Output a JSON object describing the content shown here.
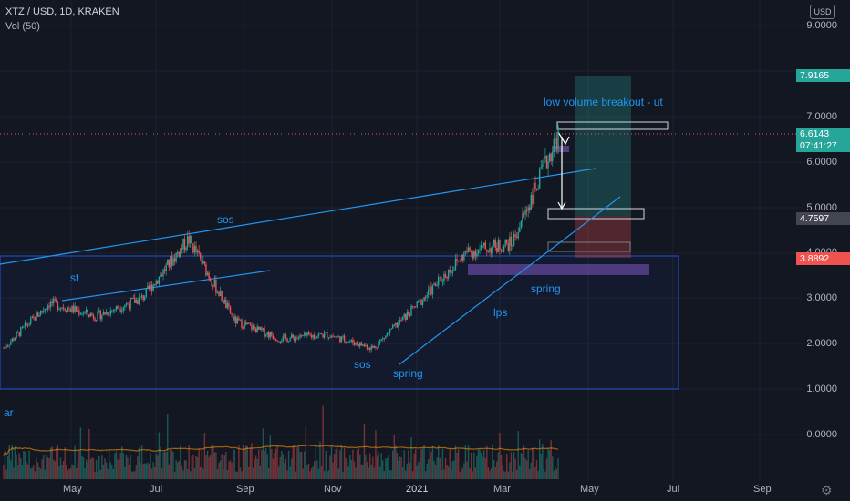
{
  "header": {
    "symbol": "XTZ / USD, 1D, KRAKEN",
    "indicator": "Vol (50)"
  },
  "axis": {
    "currency": "USD",
    "y_ticks": [
      "9.0000",
      "7.0000",
      "6.0000",
      "5.0000",
      "4.0000",
      "3.0000",
      "2.0000",
      "1.0000",
      "0.0000"
    ],
    "x_ticks": [
      "May",
      "Jul",
      "Sep",
      "Nov",
      "2021",
      "Mar",
      "May",
      "Jul",
      "Sep"
    ]
  },
  "badges": {
    "target": "7.9165",
    "last_price": "6.6143",
    "countdown": "07:41:27",
    "entry": "4.7597",
    "stop": "3.8892"
  },
  "colors": {
    "target": "#26a69a",
    "last": "#26a69a",
    "entry": "#434651",
    "stop": "#ef5350",
    "annotation": "#2196f3"
  },
  "annotations": {
    "st": "st",
    "sos_top": "sos",
    "sos_bottom": "sos",
    "spring_1": "spring",
    "spring_2": "spring",
    "lps": "lps",
    "breakout": "low volume breakout - ut",
    "ar": "ar"
  },
  "chart_data": {
    "type": "candlestick",
    "symbol": "XTZ/USD",
    "timeframe": "1D",
    "exchange": "KRAKEN",
    "approx_closes": [
      {
        "date": "2020-04",
        "price": 1.9
      },
      {
        "date": "2020-05",
        "price": 2.9
      },
      {
        "date": "2020-06",
        "price": 2.6
      },
      {
        "date": "2020-07",
        "price": 3.0
      },
      {
        "date": "2020-08",
        "price": 4.3
      },
      {
        "date": "2020-09",
        "price": 2.5
      },
      {
        "date": "2020-10",
        "price": 2.1
      },
      {
        "date": "2020-11",
        "price": 2.2
      },
      {
        "date": "2020-12",
        "price": 1.9
      },
      {
        "date": "2021-01",
        "price": 2.9
      },
      {
        "date": "2021-02",
        "price": 4.0
      },
      {
        "date": "2021-03",
        "price": 4.2
      },
      {
        "date": "2021-04",
        "price": 6.6
      }
    ],
    "levels": {
      "target": 7.9165,
      "last": 6.6143,
      "entry": 4.7597,
      "stop": 3.8892
    },
    "ylim": [
      -0.9,
      10.2
    ]
  }
}
